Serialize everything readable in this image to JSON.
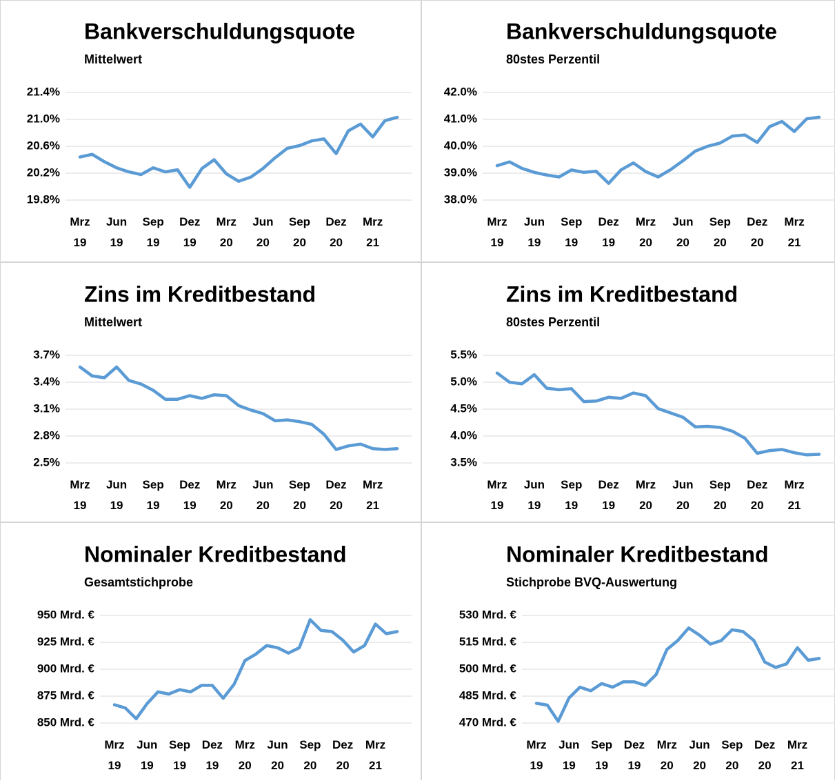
{
  "chart_data": [
    {
      "type": "line",
      "title": "Bankverschuldungsquote",
      "subtitle": "Mittelwert",
      "categories": [
        "Mrz 19",
        null,
        null,
        "Jun 19",
        null,
        null,
        "Sep 19",
        null,
        null,
        "Dez 19",
        null,
        null,
        "Mrz 20",
        null,
        null,
        "Jun 20",
        null,
        null,
        "Sep 20",
        null,
        null,
        "Dez 20",
        null,
        null,
        "Mrz 21",
        null,
        null
      ],
      "values": [
        20.44,
        20.48,
        20.37,
        20.28,
        20.22,
        20.18,
        20.28,
        20.22,
        20.25,
        19.99,
        20.27,
        20.4,
        20.19,
        20.08,
        20.14,
        20.27,
        20.43,
        20.57,
        20.61,
        20.68,
        20.71,
        20.49,
        20.83,
        20.93,
        20.74,
        20.98,
        21.03
      ],
      "color": "#5b9bd5",
      "ylim": [
        19.8,
        21.4
      ],
      "yticks": [
        {
          "value": 19.8,
          "label": "19.8%"
        },
        {
          "value": 20.2,
          "label": "20.2%"
        },
        {
          "value": 20.6,
          "label": "20.6%"
        },
        {
          "value": 21.0,
          "label": "21.0%"
        },
        {
          "value": 21.4,
          "label": "21.4%"
        }
      ],
      "grid": true
    },
    {
      "type": "line",
      "title": "Bankverschuldungsquote",
      "subtitle": "80stes Perzentil",
      "categories": [
        "Mrz 19",
        null,
        null,
        "Jun 19",
        null,
        null,
        "Sep 19",
        null,
        null,
        "Dez 19",
        null,
        null,
        "Mrz 20",
        null,
        null,
        "Jun 20",
        null,
        null,
        "Sep 20",
        null,
        null,
        "Dez 20",
        null,
        null,
        "Mrz 21",
        null,
        null
      ],
      "values": [
        39.28,
        39.42,
        39.18,
        39.03,
        38.93,
        38.86,
        39.12,
        39.03,
        39.07,
        38.62,
        39.12,
        39.38,
        39.06,
        38.86,
        39.13,
        39.46,
        39.82,
        40.0,
        40.12,
        40.38,
        40.42,
        40.14,
        40.73,
        40.92,
        40.55,
        41.02,
        41.08
      ],
      "color": "#5b9bd5",
      "ylim": [
        38,
        42
      ],
      "yticks": [
        {
          "value": 38,
          "label": "38.0%"
        },
        {
          "value": 39,
          "label": "39.0%"
        },
        {
          "value": 40,
          "label": "40.0%"
        },
        {
          "value": 41,
          "label": "41.0%"
        },
        {
          "value": 42,
          "label": "42.0%"
        }
      ],
      "grid": true
    },
    {
      "type": "line",
      "title": "Zins im Kreditbestand",
      "subtitle": "Mittelwert",
      "categories": [
        "Mrz 19",
        null,
        null,
        "Jun 19",
        null,
        null,
        "Sep 19",
        null,
        null,
        "Dez 19",
        null,
        null,
        "Mrz 20",
        null,
        null,
        "Jun 20",
        null,
        null,
        "Sep 20",
        null,
        null,
        "Dez 20",
        null,
        null,
        "Mrz 21",
        null,
        null
      ],
      "values": [
        3.57,
        3.47,
        3.45,
        3.57,
        3.42,
        3.38,
        3.31,
        3.21,
        3.21,
        3.25,
        3.22,
        3.26,
        3.25,
        3.14,
        3.09,
        3.05,
        2.97,
        2.98,
        2.96,
        2.93,
        2.82,
        2.65,
        2.69,
        2.71,
        2.66,
        2.65,
        2.66
      ],
      "color": "#5b9bd5",
      "ylim": [
        2.5,
        3.7
      ],
      "yticks": [
        {
          "value": 2.5,
          "label": "2.5%"
        },
        {
          "value": 2.8,
          "label": "2.8%"
        },
        {
          "value": 3.1,
          "label": "3.1%"
        },
        {
          "value": 3.4,
          "label": "3.4%"
        },
        {
          "value": 3.7,
          "label": "3.7%"
        }
      ],
      "grid": true
    },
    {
      "type": "line",
      "title": "Zins im Kreditbestand",
      "subtitle": "80stes Perzentil",
      "categories": [
        "Mrz 19",
        null,
        null,
        "Jun 19",
        null,
        null,
        "Sep 19",
        null,
        null,
        "Dez 19",
        null,
        null,
        "Mrz 20",
        null,
        null,
        "Jun 20",
        null,
        null,
        "Sep 20",
        null,
        null,
        "Dez 20",
        null,
        null,
        "Mrz 21",
        null,
        null
      ],
      "values": [
        5.17,
        5.0,
        4.97,
        5.14,
        4.89,
        4.86,
        4.88,
        4.64,
        4.65,
        4.72,
        4.7,
        4.8,
        4.75,
        4.51,
        4.43,
        4.35,
        4.17,
        4.18,
        4.16,
        4.09,
        3.96,
        3.68,
        3.73,
        3.75,
        3.69,
        3.65,
        3.66
      ],
      "color": "#5b9bd5",
      "ylim": [
        3.5,
        5.5
      ],
      "yticks": [
        {
          "value": 3.5,
          "label": "3.5%"
        },
        {
          "value": 4.0,
          "label": "4.0%"
        },
        {
          "value": 4.5,
          "label": "4.5%"
        },
        {
          "value": 5.0,
          "label": "5.0%"
        },
        {
          "value": 5.5,
          "label": "5.5%"
        }
      ],
      "grid": true
    },
    {
      "type": "line",
      "title": "Nominaler Kreditbestand",
      "subtitle": "Gesamtstichprobe",
      "categories": [
        "Mrz 19",
        null,
        null,
        "Jun 19",
        null,
        null,
        "Sep 19",
        null,
        null,
        "Dez 19",
        null,
        null,
        "Mrz 20",
        null,
        null,
        "Jun 20",
        null,
        null,
        "Sep 20",
        null,
        null,
        "Dez 20",
        null,
        null,
        "Mrz 21",
        null,
        null
      ],
      "values": [
        867,
        864,
        854,
        868,
        879,
        877,
        881,
        879,
        885,
        885,
        873,
        886,
        908,
        914,
        922,
        920,
        915,
        920,
        946,
        936,
        935,
        927,
        916,
        922,
        942,
        933,
        935
      ],
      "color": "#5b9bd5",
      "ylim": [
        850,
        950
      ],
      "yticks": [
        {
          "value": 850,
          "label": "850 Mrd. €"
        },
        {
          "value": 875,
          "label": "875 Mrd. €"
        },
        {
          "value": 900,
          "label": "900 Mrd. €"
        },
        {
          "value": 925,
          "label": "925 Mrd. €"
        },
        {
          "value": 950,
          "label": "950 Mrd. €"
        }
      ],
      "grid": true
    },
    {
      "type": "line",
      "title": "Nominaler Kreditbestand",
      "subtitle": "Stichprobe BVQ-Auswertung",
      "categories": [
        "Mrz 19",
        null,
        null,
        "Jun 19",
        null,
        null,
        "Sep 19",
        null,
        null,
        "Dez 19",
        null,
        null,
        "Mrz 20",
        null,
        null,
        "Jun 20",
        null,
        null,
        "Sep 20",
        null,
        null,
        "Dez 20",
        null,
        null,
        "Mrz 21",
        null,
        null
      ],
      "values": [
        481,
        480,
        471,
        484,
        490,
        488,
        492,
        490,
        493,
        493,
        491,
        497,
        511,
        516,
        523,
        519,
        514,
        516,
        522,
        521,
        516,
        504,
        501,
        503,
        512,
        505,
        506
      ],
      "color": "#5b9bd5",
      "ylim": [
        470,
        530
      ],
      "yticks": [
        {
          "value": 470,
          "label": "470 Mrd. €"
        },
        {
          "value": 485,
          "label": "485 Mrd. €"
        },
        {
          "value": 500,
          "label": "500 Mrd. €"
        },
        {
          "value": 515,
          "label": "515 Mrd. €"
        },
        {
          "value": 530,
          "label": "530 Mrd. €"
        }
      ],
      "grid": true
    }
  ]
}
